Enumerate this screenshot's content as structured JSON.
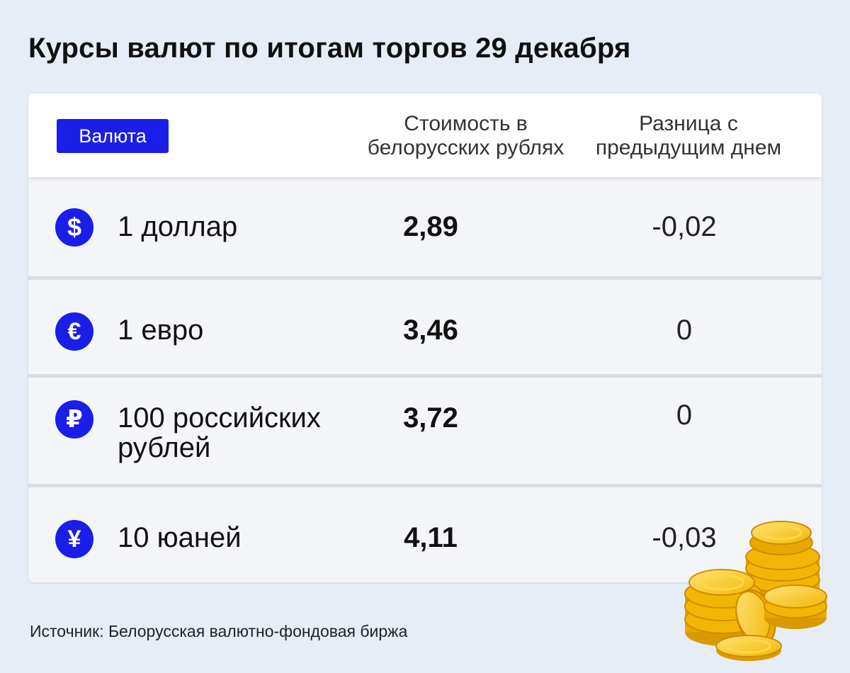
{
  "title": "Курсы валют по итогам торгов 29 декабря",
  "table": {
    "header": {
      "currency_label": "Валюта",
      "value_label_line1": "Стоимость в",
      "value_label_line2": "белорусских рублях",
      "diff_label_line1": "Разница с",
      "diff_label_line2": "предыдущим днем"
    },
    "rows": [
      {
        "icon": "dollar-icon",
        "glyph": "$",
        "name_line1": "1 доллар",
        "name_line2": "",
        "value": "2,89",
        "diff": "-0,02"
      },
      {
        "icon": "euro-icon",
        "glyph": "€",
        "name_line1": "1 евро",
        "name_line2": "",
        "value": "3,46",
        "diff": "0"
      },
      {
        "icon": "ruble-icon",
        "glyph": "₽",
        "name_line1": "100 российских",
        "name_line2": "рублей",
        "value": "3,72",
        "diff": "0"
      },
      {
        "icon": "yuan-icon",
        "glyph": "¥",
        "name_line1": "10 юаней",
        "name_line2": "",
        "value": "4,11",
        "diff": "-0,03"
      }
    ]
  },
  "source": "Источник: Белорусская валютно-фондовая биржа",
  "colors": {
    "background": "#e7edf7",
    "accent": "#1a1ee8",
    "coin_gold": "#f2b705"
  }
}
